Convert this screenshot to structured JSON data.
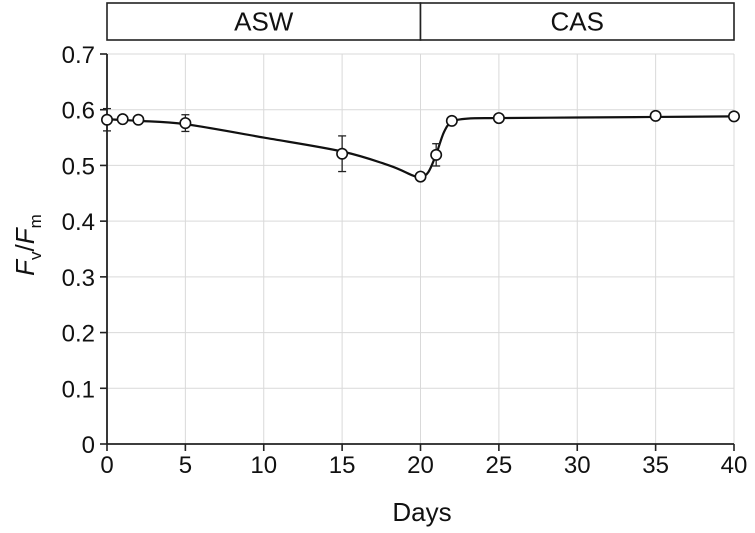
{
  "chart_data": {
    "type": "line",
    "xlabel": "Days",
    "ylabel": {
      "main": "F",
      "sub1": "v",
      "sep": "/",
      "main2": "F",
      "sub2": "m"
    },
    "xlim": [
      0,
      40
    ],
    "ylim": [
      0,
      0.7
    ],
    "x_ticks": [
      0,
      5,
      10,
      15,
      20,
      25,
      30,
      35,
      40
    ],
    "x_tick_labels": [
      "0",
      "5",
      "10",
      "15",
      "20",
      "25",
      "30",
      "35",
      "40"
    ],
    "y_ticks": [
      0,
      0.1,
      0.2,
      0.3,
      0.4,
      0.5,
      0.6,
      0.7
    ],
    "y_tick_labels": [
      "0",
      "0.1",
      "0.2",
      "0.3",
      "0.4",
      "0.5",
      "0.6",
      "0.7"
    ],
    "grid": true,
    "phases": [
      {
        "label": "ASW",
        "start": 0,
        "end": 20
      },
      {
        "label": "CAS",
        "start": 20,
        "end": 40
      }
    ],
    "series": [
      {
        "x": [
          0,
          1,
          2,
          5,
          15,
          20,
          21,
          22,
          25,
          35,
          40
        ],
        "y": [
          0.582,
          0.583,
          0.582,
          0.576,
          0.521,
          0.48,
          0.519,
          0.58,
          0.585,
          0.589,
          0.588
        ],
        "error": [
          0.02,
          0.0,
          0.0,
          0.015,
          0.032,
          0.0,
          0.02,
          0.0,
          0.0,
          0.0,
          0.0
        ]
      }
    ],
    "curve": {
      "x": [
        0,
        2,
        5,
        10,
        15,
        18,
        19.5,
        20,
        20.5,
        21,
        21.5,
        22,
        23,
        25,
        30,
        35,
        40
      ],
      "y": [
        0.583,
        0.58,
        0.574,
        0.55,
        0.525,
        0.5,
        0.482,
        0.478,
        0.488,
        0.52,
        0.56,
        0.578,
        0.584,
        0.585,
        0.586,
        0.587,
        0.588
      ]
    }
  }
}
